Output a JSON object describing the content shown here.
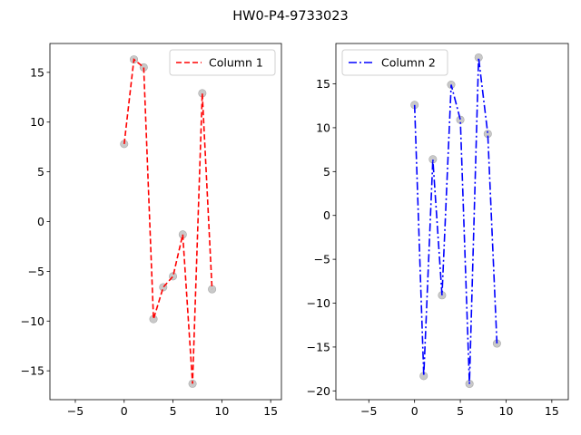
{
  "figure": {
    "title": "HW0-P4-9733023"
  },
  "chart_data": [
    {
      "type": "line",
      "title": "",
      "xlabel": "",
      "ylabel": "",
      "x": [
        0,
        1,
        2,
        3,
        4,
        5,
        6,
        7,
        8,
        9
      ],
      "series": [
        {
          "name": "Column 1",
          "values": [
            7.8,
            16.3,
            15.5,
            -9.8,
            -6.6,
            -5.5,
            -1.3,
            -16.3,
            12.9,
            -6.8
          ],
          "color": "#ff0000",
          "linestyle": "dashed"
        }
      ],
      "marker_color": "#bfbfbf",
      "xlim": [
        -7.6,
        16.1
      ],
      "ylim": [
        -17.9,
        17.9
      ],
      "xticks": [
        -5,
        0,
        5,
        10,
        15
      ],
      "yticks": [
        -15,
        -10,
        -5,
        0,
        5,
        10,
        15
      ],
      "grid": false,
      "legend_position": "upper right"
    },
    {
      "type": "line",
      "title": "",
      "xlabel": "",
      "ylabel": "",
      "x": [
        0,
        1,
        2,
        3,
        4,
        5,
        6,
        7,
        8,
        9
      ],
      "series": [
        {
          "name": "Column 2",
          "values": [
            12.6,
            -18.3,
            6.4,
            -9.1,
            14.9,
            10.9,
            -19.2,
            18.0,
            9.3,
            -14.6
          ],
          "color": "#0000ff",
          "linestyle": "dashdot"
        }
      ],
      "marker_color": "#bfbfbf",
      "xlim": [
        -8.6,
        16.8
      ],
      "ylim": [
        -21.0,
        19.6
      ],
      "xticks": [
        -5,
        0,
        5,
        10,
        15
      ],
      "yticks": [
        -20,
        -15,
        -10,
        -5,
        0,
        5,
        10,
        15
      ],
      "grid": false,
      "legend_position": "upper left"
    }
  ]
}
